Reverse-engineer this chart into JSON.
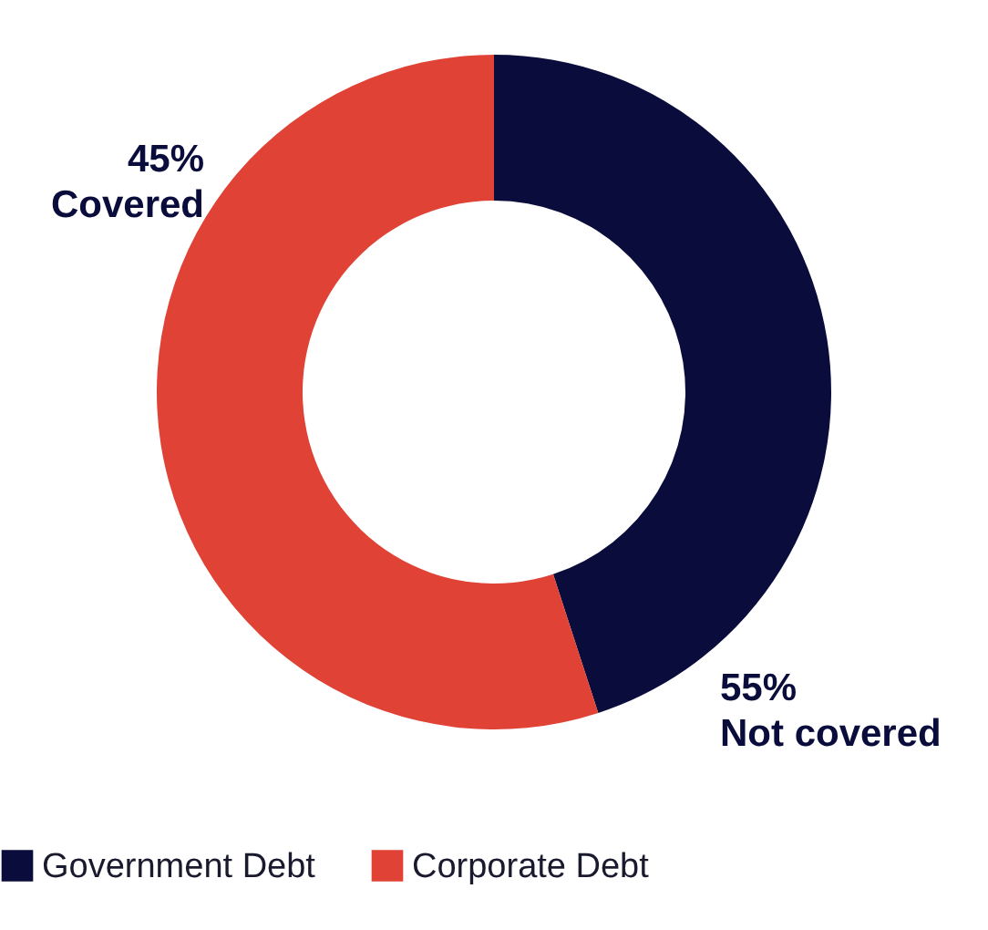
{
  "chart_data": {
    "type": "donut",
    "categories": [
      "Government Debt",
      "Corporate Debt"
    ],
    "values": [
      45,
      55
    ],
    "colors": [
      "#0a0c3c",
      "#e04236"
    ],
    "annotations": [
      "45%\nCovered",
      "55%\nNot covered"
    ],
    "legend": "bottom"
  }
}
